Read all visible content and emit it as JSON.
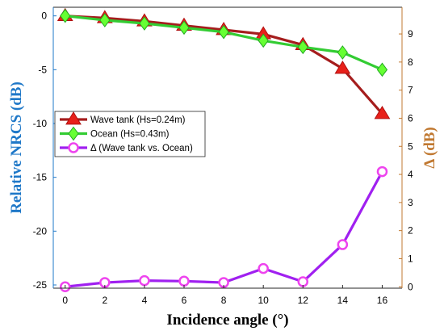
{
  "chart_data": {
    "type": "line",
    "x": [
      0,
      2,
      4,
      6,
      8,
      10,
      12,
      14,
      16
    ],
    "xlabel": "Incidence angle (°)",
    "xlim": [
      -0.6,
      17
    ],
    "xticks": [
      "0",
      "2",
      "4",
      "6",
      "8",
      "10",
      "12",
      "14",
      "16"
    ],
    "y_left": {
      "label": "Relative NRCS (dB)",
      "lim": [
        -25.3,
        0.8
      ],
      "ticks": [
        "0",
        "-5",
        "-10",
        "-15",
        "-20",
        "-25"
      ],
      "color": "#1f78c8"
    },
    "y_right": {
      "label": "Δ (dB)",
      "lim": [
        -0.05,
        9.95
      ],
      "ticks": [
        "0",
        "1",
        "2",
        "3",
        "4",
        "5",
        "6",
        "7",
        "8",
        "9"
      ],
      "color": "#c07830"
    },
    "series": [
      {
        "name": "Wave tank (Hs=0.24m)",
        "axis": "left",
        "marker": "triangle",
        "line_color": "#a51d1d",
        "marker_color": "#e8201a",
        "values": [
          0,
          -0.2,
          -0.5,
          -0.9,
          -1.3,
          -1.7,
          -2.7,
          -4.9,
          -9.1
        ]
      },
      {
        "name": "Ocean (Hs=0.43m)",
        "axis": "left",
        "marker": "diamond",
        "line_color": "#33cc33",
        "marker_color": "#66ff33",
        "values": [
          0,
          -0.4,
          -0.7,
          -1.1,
          -1.5,
          -2.3,
          -2.9,
          -3.4,
          -5.0
        ]
      },
      {
        "name": "Δ (Wave tank vs. Ocean)",
        "axis": "right",
        "marker": "circle",
        "line_color": "#a020f0",
        "marker_color": "#ee44ee",
        "values": [
          0.0,
          0.15,
          0.22,
          0.2,
          0.15,
          0.65,
          0.18,
          1.5,
          4.1
        ]
      }
    ],
    "legend_position": "middle-left",
    "grid": false
  }
}
